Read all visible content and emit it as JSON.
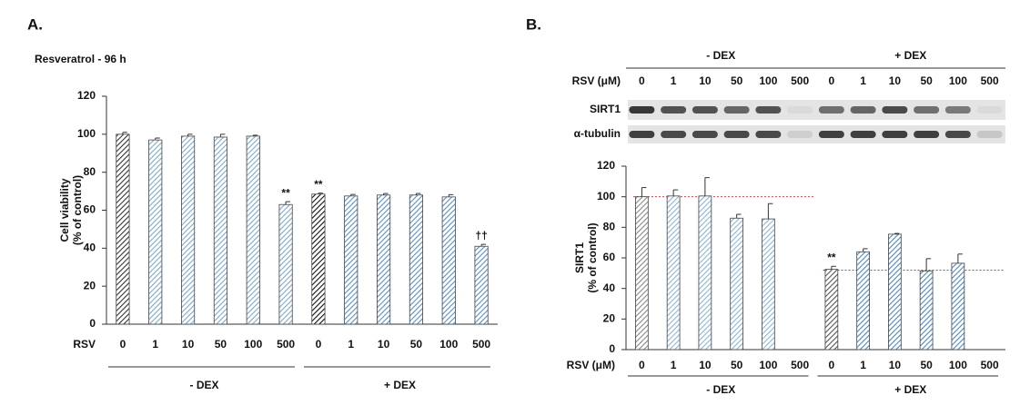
{
  "chart_data": [
    {
      "type": "bar",
      "panel": "A.",
      "title": "Resveratrol - 96 h",
      "y_label": [
        "Cell viability",
        "(% of control)"
      ],
      "x_label": "RSV",
      "categories": [
        "0",
        "1",
        "10",
        "50",
        "100",
        "500",
        "0",
        "1",
        "10",
        "50",
        "100",
        "500"
      ],
      "groups": [
        "- DEX",
        "+ DEX"
      ],
      "values": [
        100,
        97,
        99,
        98.5,
        99,
        63,
        68.5,
        67.5,
        68,
        68,
        67,
        41
      ],
      "errors": [
        1,
        1,
        1,
        1.5,
        0.5,
        1.5,
        0.5,
        0.8,
        0.8,
        0.8,
        1.2,
        1
      ],
      "annotations": [
        null,
        null,
        null,
        null,
        null,
        "**",
        "**",
        null,
        null,
        null,
        null,
        "††"
      ],
      "colors": [
        "#333333",
        "#7fa8c9",
        "#7fa8c9",
        "#7fa8c9",
        "#7fa8c9",
        "#7fa8c9",
        "#111111",
        "#5b8fc0",
        "#5b8fc0",
        "#5b8fc0",
        "#5b8fc0",
        "#5b8fc0"
      ],
      "ylim": [
        0,
        120
      ],
      "yticks": [
        0,
        20,
        40,
        60,
        80,
        100,
        120
      ]
    },
    {
      "type": "bar",
      "panel": "B.",
      "y_label": [
        "SIRT1",
        "(% of control)"
      ],
      "x_label": "RSV (μM)",
      "blot_rows": [
        "SIRT1",
        "α-tubulin"
      ],
      "categories": [
        "0",
        "1",
        "10",
        "50",
        "100",
        "500",
        "0",
        "1",
        "10",
        "50",
        "100",
        "500"
      ],
      "groups": [
        "- DEX",
        "+ DEX"
      ],
      "values": [
        100,
        100.5,
        100.5,
        86,
        85.5,
        0,
        52.5,
        64,
        75.5,
        51.5,
        56.5,
        0
      ],
      "errors": [
        6,
        4,
        12,
        2.5,
        10,
        null,
        2,
        2,
        0.5,
        8,
        6,
        null
      ],
      "annotations": [
        null,
        null,
        null,
        null,
        null,
        null,
        "**",
        null,
        null,
        null,
        null,
        null
      ],
      "colors": [
        "#888888",
        "#8db4d6",
        "#8db4d6",
        "#8db4d6",
        "#8db4d6",
        "#8db4d6",
        "#555555",
        "#4f86bd",
        "#4f86bd",
        "#4f86bd",
        "#4f86bd",
        "#4f86bd"
      ],
      "reference_lines": [
        100,
        52
      ],
      "ylim": [
        0,
        120
      ],
      "yticks": [
        0,
        20,
        40,
        60,
        80,
        100,
        120
      ]
    }
  ]
}
